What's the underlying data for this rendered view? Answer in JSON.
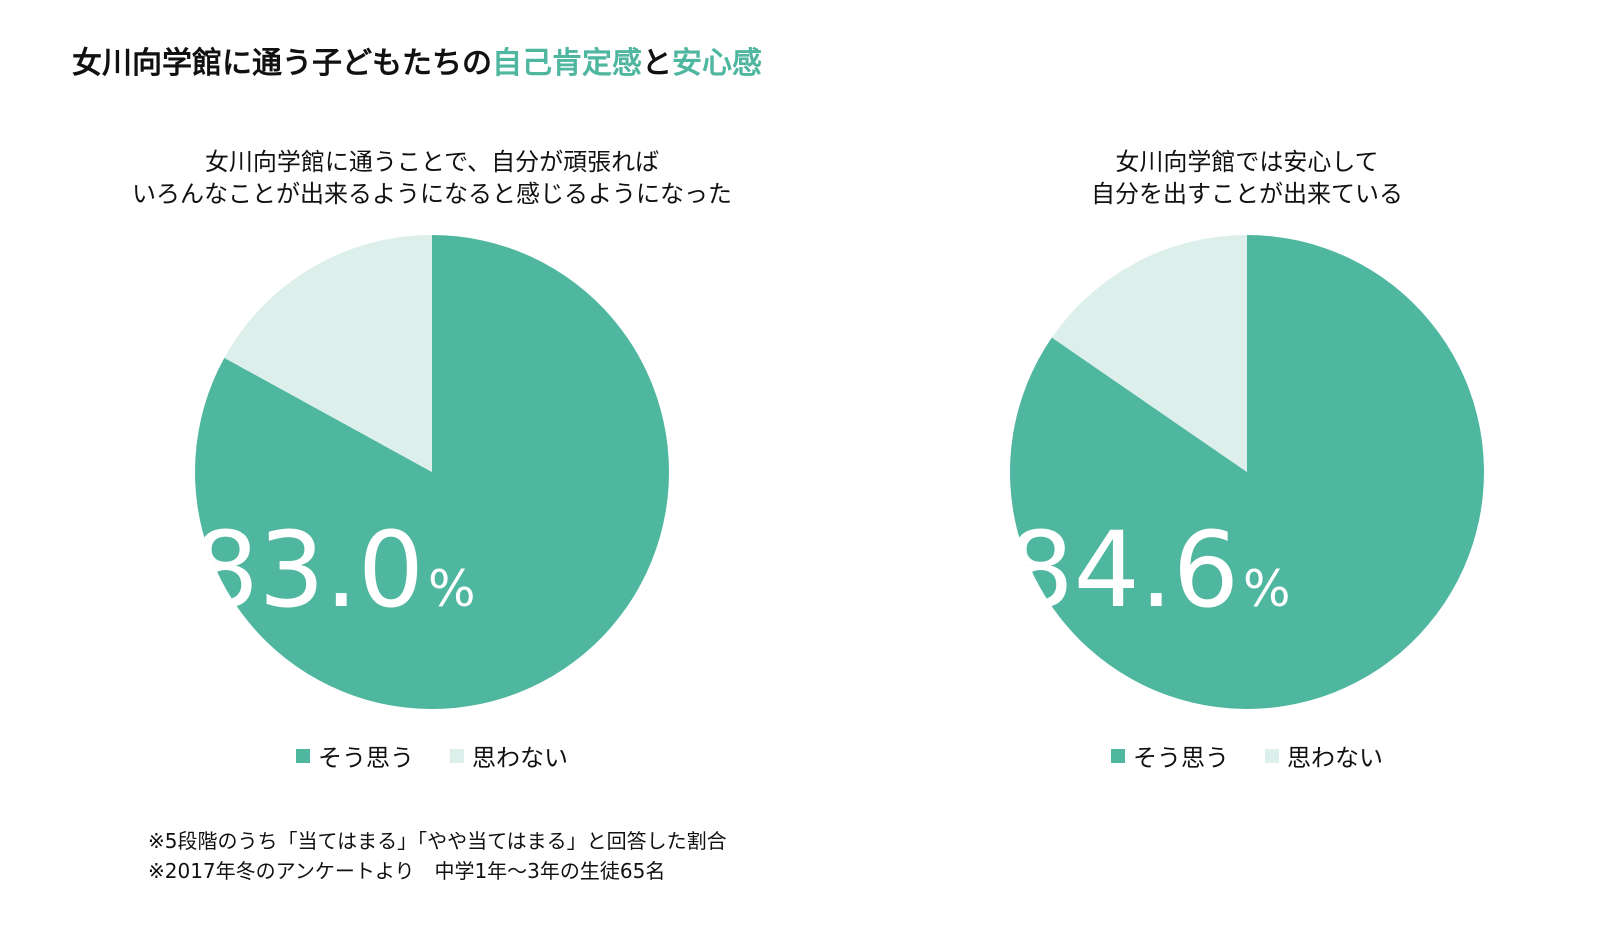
{
  "title": {
    "prefix": "女川向学館に通う子どもたちの",
    "accent1": "自己肯定感",
    "joiner": "と",
    "accent2": "安心感"
  },
  "colors": {
    "accent": "#4fb6a0",
    "agree": "#4fb6a0",
    "disagree": "#dcefeb",
    "text": "#111111"
  },
  "chart_data": [
    {
      "type": "pie",
      "title_lines": [
        "女川向学館に通うことで、自分が頑張れば",
        "いろんなことが出来るようになると感じるようになった"
      ],
      "labels": [
        "そう思う",
        "思わない"
      ],
      "values": [
        83.0,
        17.0
      ],
      "value_label": "83.0",
      "unit": "%",
      "legend_position": "bottom"
    },
    {
      "type": "pie",
      "title_lines": [
        "女川向学館では安心して",
        "自分を出すことが出来ている"
      ],
      "labels": [
        "そう思う",
        "思わない"
      ],
      "values": [
        84.6,
        15.4
      ],
      "value_label": "84.6",
      "unit": "%",
      "legend_position": "bottom"
    }
  ],
  "notes": [
    "※5段階のうち「当てはまる」「やや当てはまる」と回答した割合",
    "※2017年冬のアンケートより　中学1年〜3年の生徒65名"
  ]
}
